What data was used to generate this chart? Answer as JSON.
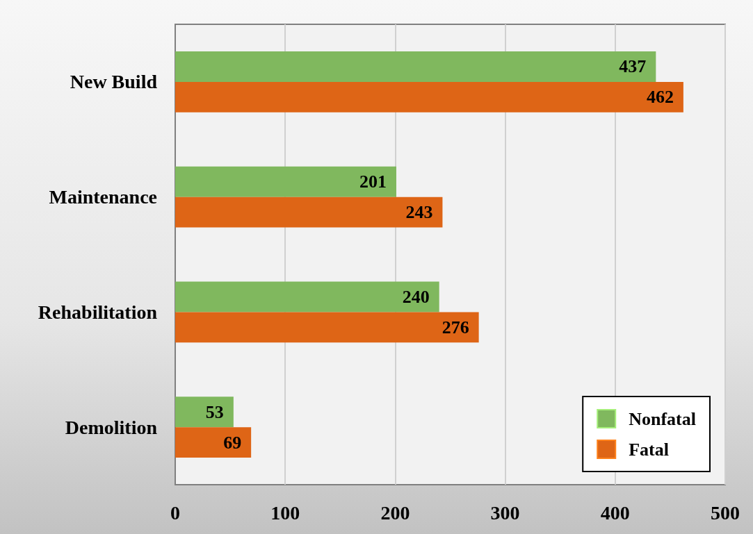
{
  "chart_data": {
    "type": "bar",
    "orientation": "horizontal",
    "categories": [
      "New Build",
      "Maintenance",
      "Rehabilitation",
      "Demolition"
    ],
    "series": [
      {
        "name": "Nonfatal",
        "color": "#80b85e",
        "values": [
          437,
          201,
          240,
          53
        ]
      },
      {
        "name": "Fatal",
        "color": "#de6516",
        "values": [
          462,
          243,
          276,
          69
        ]
      }
    ],
    "xlim": [
      0,
      500
    ],
    "xticks": [
      0,
      100,
      200,
      300,
      400,
      500
    ],
    "grid": "x",
    "legend": "bottom right",
    "data_labels": true
  }
}
